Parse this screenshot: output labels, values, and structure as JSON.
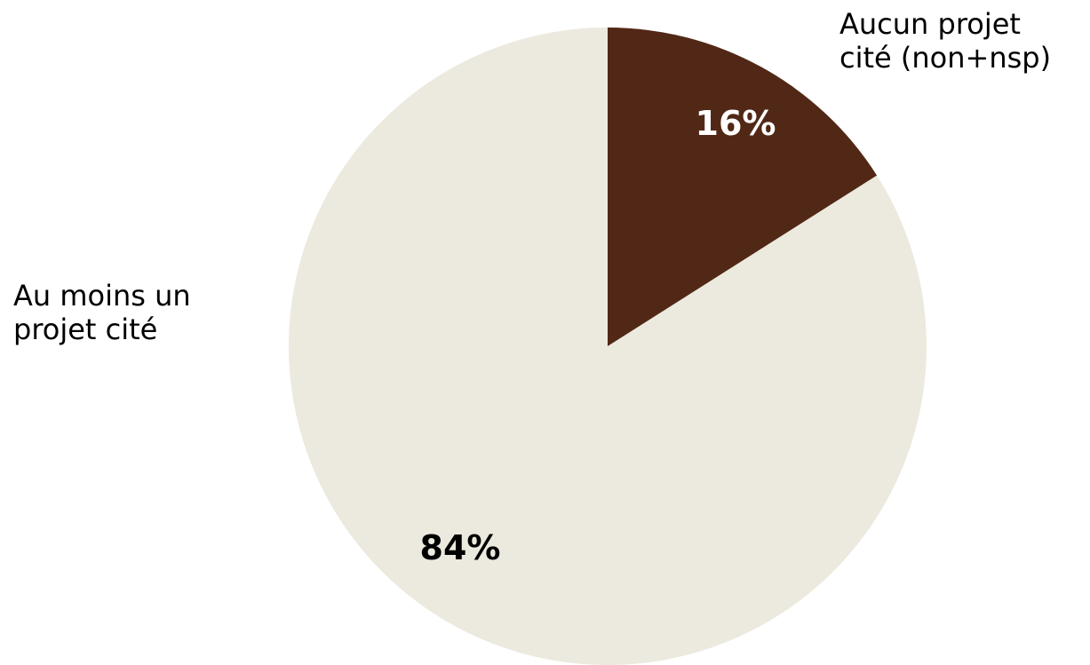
{
  "chart_data": {
    "type": "pie",
    "categories": [
      "Aucun projet cité (non+nsp)",
      "Au moins un projet cité"
    ],
    "label_lines": [
      [
        "Aucun projet",
        "cité (non+nsp)"
      ],
      [
        "Au moins un",
        "projet cité"
      ]
    ],
    "values": [
      16,
      84
    ],
    "value_labels": [
      "16%",
      "84%"
    ],
    "colors": [
      "#512815",
      "#ECE9DE"
    ],
    "value_label_colors": [
      "#FFFFFF",
      "#000000"
    ],
    "start": "12 o'clock",
    "direction": "clockwise"
  }
}
